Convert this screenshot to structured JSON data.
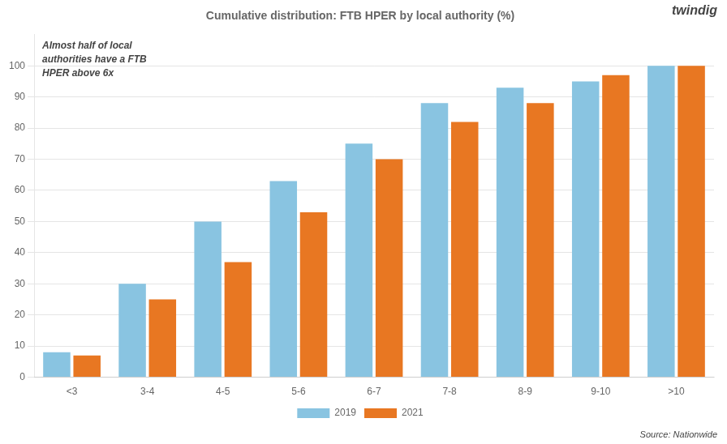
{
  "chart_data": {
    "type": "bar",
    "title": "Cumulative distribution: FTB HPER by local authority (%)",
    "categories": [
      "<3",
      "3-4",
      "4-5",
      "5-6",
      "6-7",
      "7-8",
      "8-9",
      "9-10",
      ">10"
    ],
    "series": [
      {
        "name": "2019",
        "color": "#89C4E1",
        "values": [
          8,
          30,
          50,
          63,
          75,
          88,
          93,
          95,
          100
        ]
      },
      {
        "name": "2021",
        "color": "#E87722",
        "values": [
          7,
          25,
          37,
          53,
          70,
          82,
          88,
          97,
          100
        ]
      }
    ],
    "ylim": [
      0,
      110
    ],
    "yticks": [
      0,
      10,
      20,
      30,
      40,
      50,
      60,
      70,
      80,
      90,
      100
    ],
    "grid": "y",
    "legend": "bottom",
    "annotations": [
      "Almost half of local\nauthorities have a FTB\nHPER above 6x",
      "Source: Nationwide",
      "twindig"
    ]
  }
}
